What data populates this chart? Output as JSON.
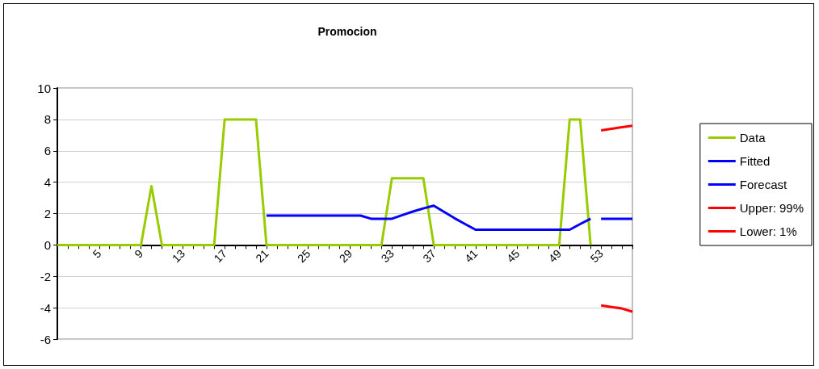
{
  "chart_data": {
    "type": "line",
    "title": "Promocion",
    "categories": [
      null,
      null,
      null,
      null,
      "5",
      null,
      null,
      null,
      "9",
      null,
      null,
      null,
      "13",
      null,
      null,
      null,
      "17",
      null,
      null,
      null,
      "21",
      null,
      null,
      null,
      "25",
      null,
      null,
      null,
      "29",
      null,
      null,
      null,
      "33",
      null,
      null,
      null,
      "37",
      null,
      null,
      null,
      "41",
      null,
      null,
      null,
      "45",
      null,
      null,
      null,
      "49",
      null,
      null,
      null,
      "53",
      null,
      null,
      null
    ],
    "series": [
      {
        "name": "Data",
        "color": "#99cc00",
        "values": [
          0,
          0,
          0,
          0,
          0,
          0,
          0,
          0,
          0,
          3.75,
          0,
          0,
          0,
          0,
          0,
          0,
          8,
          8,
          8,
          8,
          0,
          0,
          0,
          0,
          0,
          0,
          0,
          0,
          0,
          0,
          0,
          0,
          4.25,
          4.25,
          4.25,
          4.25,
          0,
          0,
          0,
          0,
          0,
          0,
          0,
          0,
          0,
          0,
          0,
          0,
          0,
          8,
          8,
          0,
          null,
          null,
          null,
          null
        ]
      },
      {
        "name": "Fitted",
        "color": "#0000ff",
        "values": [
          null,
          null,
          null,
          null,
          null,
          null,
          null,
          null,
          null,
          null,
          null,
          null,
          null,
          null,
          null,
          null,
          null,
          null,
          null,
          null,
          1.87,
          1.87,
          1.87,
          1.87,
          1.87,
          1.87,
          1.87,
          1.87,
          1.87,
          1.87,
          1.67,
          1.67,
          1.67,
          1.9,
          2.13,
          2.33,
          2.5,
          2.1,
          1.7,
          1.33,
          0.97,
          0.97,
          0.97,
          0.97,
          0.97,
          0.97,
          0.97,
          0.97,
          0.97,
          0.97,
          1.33,
          1.67,
          null,
          null,
          null,
          null
        ]
      },
      {
        "name": "Forecast",
        "color": "#0000ff",
        "values": [
          null,
          null,
          null,
          null,
          null,
          null,
          null,
          null,
          null,
          null,
          null,
          null,
          null,
          null,
          null,
          null,
          null,
          null,
          null,
          null,
          null,
          null,
          null,
          null,
          null,
          null,
          null,
          null,
          null,
          null,
          null,
          null,
          null,
          null,
          null,
          null,
          null,
          null,
          null,
          null,
          null,
          null,
          null,
          null,
          null,
          null,
          null,
          null,
          null,
          null,
          null,
          null,
          1.67,
          1.67,
          1.67,
          1.67
        ]
      },
      {
        "name": "Upper: 99%",
        "color": "#ff0000",
        "values": [
          null,
          null,
          null,
          null,
          null,
          null,
          null,
          null,
          null,
          null,
          null,
          null,
          null,
          null,
          null,
          null,
          null,
          null,
          null,
          null,
          null,
          null,
          null,
          null,
          null,
          null,
          null,
          null,
          null,
          null,
          null,
          null,
          null,
          null,
          null,
          null,
          null,
          null,
          null,
          null,
          null,
          null,
          null,
          null,
          null,
          null,
          null,
          null,
          null,
          null,
          null,
          null,
          7.3,
          7.4,
          7.5,
          7.6
        ]
      },
      {
        "name": "Lower: 1%",
        "color": "#ff0000",
        "values": [
          null,
          null,
          null,
          null,
          null,
          null,
          null,
          null,
          null,
          null,
          null,
          null,
          null,
          null,
          null,
          null,
          null,
          null,
          null,
          null,
          null,
          null,
          null,
          null,
          null,
          null,
          null,
          null,
          null,
          null,
          null,
          null,
          null,
          null,
          null,
          null,
          null,
          null,
          null,
          null,
          null,
          null,
          null,
          null,
          null,
          null,
          null,
          null,
          null,
          null,
          null,
          null,
          -3.85,
          -3.95,
          -4.05,
          -4.25
        ]
      }
    ],
    "ylim": [
      -6,
      10
    ],
    "yticks": [
      -6,
      -4,
      -2,
      0,
      2,
      4,
      6,
      8,
      10
    ],
    "grid": "y",
    "legend": "right",
    "marker": "none",
    "line_style": "solid"
  }
}
